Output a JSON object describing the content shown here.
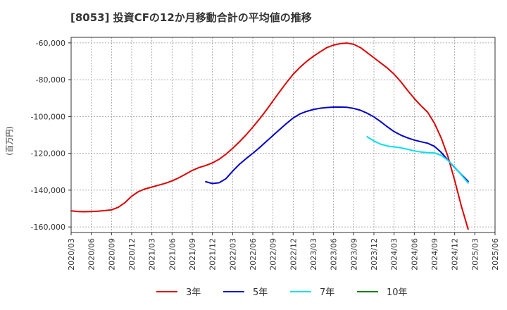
{
  "chart_data": {
    "type": "line",
    "title": "[8053]  投資CFの12か月移動合計の平均値の推移",
    "ylabel": "(百万円)",
    "xlabel": "",
    "ylim": [
      -163000,
      -57000
    ],
    "y_ticks": [
      -60000,
      -80000,
      -100000,
      -120000,
      -140000,
      -160000
    ],
    "y_tick_labels": [
      "-60,000",
      "-80,000",
      "-100,000",
      "-120,000",
      "-140,000",
      "-160,000"
    ],
    "x_tick_labels": [
      "2020/03",
      "2020/06",
      "2020/09",
      "2020/12",
      "2021/03",
      "2021/06",
      "2021/09",
      "2021/12",
      "2022/03",
      "2022/06",
      "2022/09",
      "2022/12",
      "2023/03",
      "2023/06",
      "2023/09",
      "2023/12",
      "2024/03",
      "2024/06",
      "2024/09",
      "2024/12",
      "2025/03",
      "2025/06"
    ],
    "grid": true,
    "legend_position": "bottom",
    "series": [
      {
        "name": "3年",
        "color": "#e00000",
        "start_index": 0,
        "values": [
          -151200,
          -151600,
          -151700,
          -151600,
          -151400,
          -151100,
          -150700,
          -149300,
          -146800,
          -143300,
          -140800,
          -139300,
          -138300,
          -137300,
          -136300,
          -135000,
          -133300,
          -131300,
          -129300,
          -127700,
          -126600,
          -125200,
          -123200,
          -120500,
          -117300,
          -113800,
          -110000,
          -105800,
          -101300,
          -96600,
          -91500,
          -86500,
          -81600,
          -77100,
          -73300,
          -70100,
          -67300,
          -64900,
          -62600,
          -61200,
          -60400,
          -60100,
          -60800,
          -62600,
          -65300,
          -68100,
          -70900,
          -73700,
          -77000,
          -81100,
          -85800,
          -90200,
          -94200,
          -97700,
          -103700,
          -111700,
          -121700,
          -134700,
          -148700,
          -161200
        ]
      },
      {
        "name": "5年",
        "color": "#0000cc",
        "start_index": 20,
        "values": [
          -135400,
          -136400,
          -136000,
          -133800,
          -129700,
          -126000,
          -122900,
          -120000,
          -116900,
          -113600,
          -110300,
          -107000,
          -103800,
          -100800,
          -98600,
          -97200,
          -96200,
          -95500,
          -95100,
          -94900,
          -94900,
          -95000,
          -95600,
          -96600,
          -98200,
          -100200,
          -102800,
          -105600,
          -108200,
          -110100,
          -111600,
          -112800,
          -113700,
          -114500,
          -116200,
          -119500,
          -123700,
          -127700,
          -131500,
          -135200
        ]
      },
      {
        "name": "7年",
        "color": "#00e0f0",
        "start_index": 44,
        "values": [
          -111000,
          -113300,
          -115000,
          -116000,
          -116500,
          -117000,
          -117800,
          -118700,
          -119300,
          -119600,
          -119800,
          -121100,
          -123800,
          -127500,
          -131700,
          -136100
        ]
      },
      {
        "name": "10年",
        "color": "#008000",
        "start_index": 0,
        "values": []
      }
    ]
  }
}
